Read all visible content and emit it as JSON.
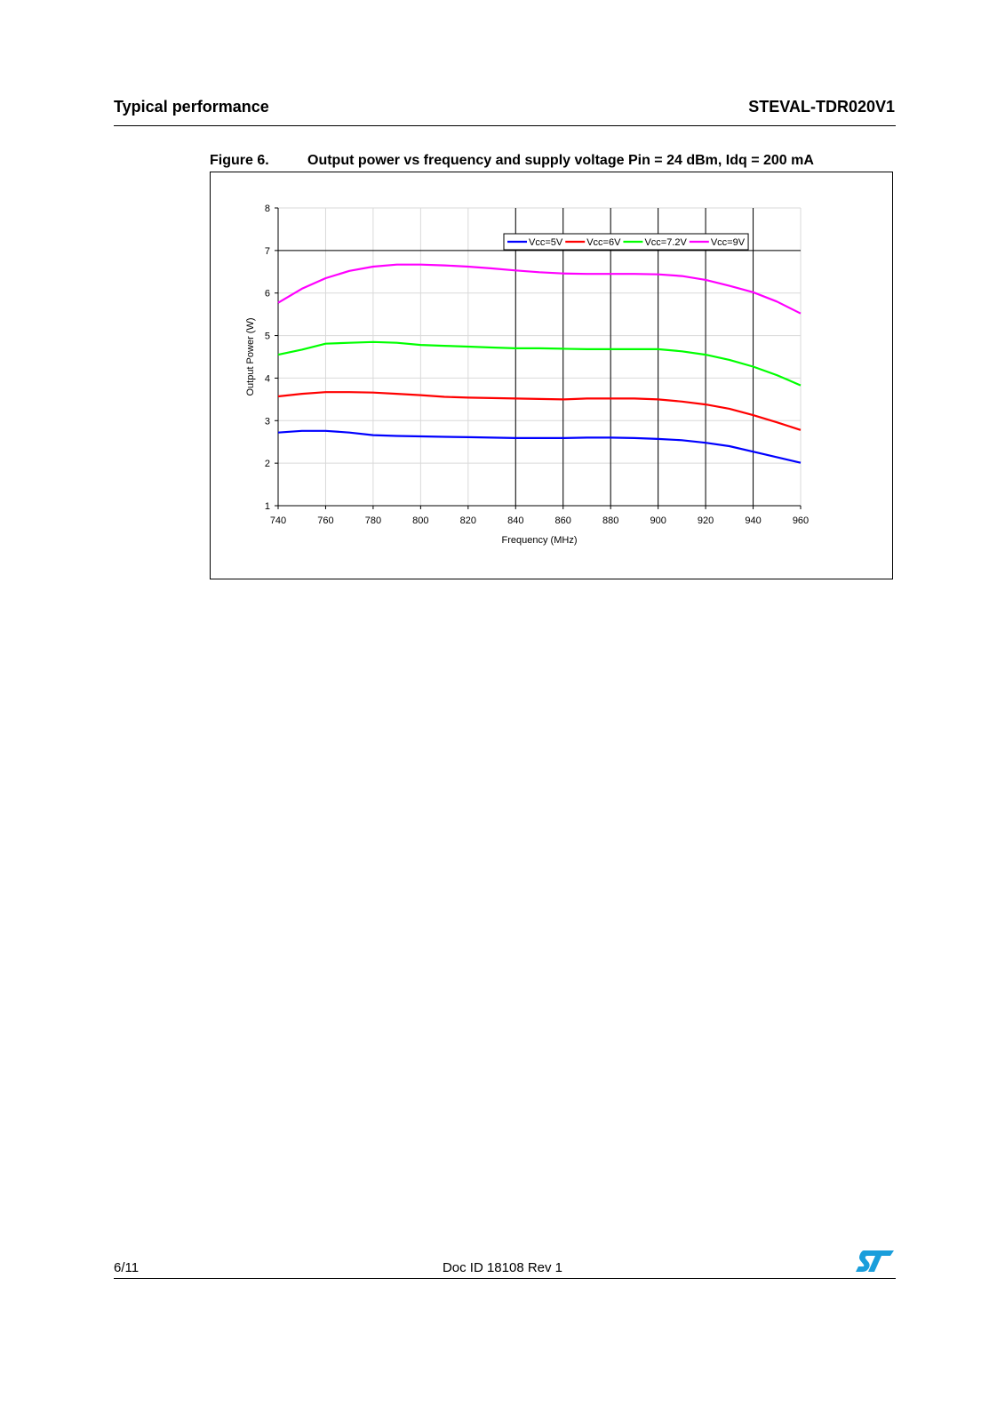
{
  "header": {
    "section_title": "Typical performance",
    "product_name": "STEVAL-TDR020V1"
  },
  "figure": {
    "number": "Figure 6.",
    "caption": "Output power vs frequency and supply voltage Pin = 24 dBm, Idq = 200 mA"
  },
  "chart_data": {
    "type": "line",
    "title": "",
    "xlabel": "Frequency (MHz)",
    "ylabel": "Output Power (W)",
    "xlim": [
      740,
      960
    ],
    "ylim": [
      1,
      8
    ],
    "xticks": [
      740,
      760,
      780,
      800,
      820,
      840,
      860,
      880,
      900,
      920,
      940,
      960
    ],
    "yticks": [
      1,
      2,
      3,
      4,
      5,
      6,
      7,
      8
    ],
    "grid": true,
    "legend_position": "top-right",
    "x": [
      740,
      750,
      760,
      770,
      780,
      790,
      800,
      810,
      820,
      830,
      840,
      850,
      860,
      870,
      880,
      890,
      900,
      910,
      920,
      930,
      940,
      950,
      960
    ],
    "series": [
      {
        "name": "Vcc=5V",
        "color": "#0000ff",
        "values": [
          2.72,
          2.76,
          2.76,
          2.72,
          2.66,
          2.64,
          2.63,
          2.62,
          2.61,
          2.6,
          2.59,
          2.59,
          2.59,
          2.6,
          2.6,
          2.59,
          2.57,
          2.54,
          2.48,
          2.4,
          2.27,
          2.14,
          2.01
        ]
      },
      {
        "name": "Vcc=6V",
        "color": "#ff0000",
        "values": [
          3.57,
          3.63,
          3.67,
          3.67,
          3.66,
          3.63,
          3.6,
          3.56,
          3.54,
          3.53,
          3.52,
          3.51,
          3.5,
          3.52,
          3.52,
          3.52,
          3.5,
          3.45,
          3.38,
          3.28,
          3.13,
          2.96,
          2.78
        ]
      },
      {
        "name": "Vcc=7.2V",
        "color": "#00ff00",
        "values": [
          4.55,
          4.67,
          4.81,
          4.83,
          4.85,
          4.83,
          4.78,
          4.76,
          4.74,
          4.72,
          4.7,
          4.7,
          4.69,
          4.68,
          4.68,
          4.68,
          4.68,
          4.63,
          4.55,
          4.43,
          4.27,
          4.07,
          3.83
        ]
      },
      {
        "name": "Vcc=9V",
        "color": "#ff00ff",
        "values": [
          5.77,
          6.1,
          6.35,
          6.52,
          6.62,
          6.67,
          6.67,
          6.65,
          6.62,
          6.58,
          6.53,
          6.49,
          6.46,
          6.45,
          6.45,
          6.45,
          6.44,
          6.4,
          6.31,
          6.17,
          6.02,
          5.8,
          5.52
        ]
      }
    ]
  },
  "footer": {
    "page": "6/11",
    "doc_id": "Doc ID 18108 Rev 1"
  },
  "logo": {
    "name": "st-logo",
    "color": "#1a9edb"
  }
}
